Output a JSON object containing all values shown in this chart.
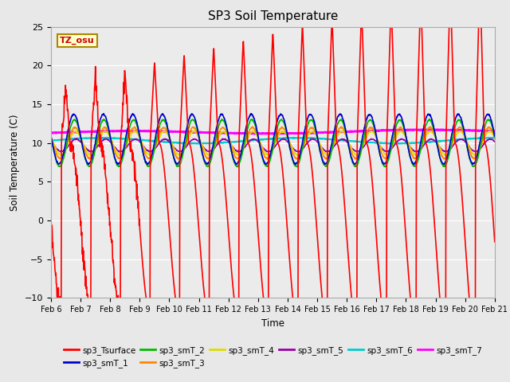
{
  "title": "SP3 Soil Temperature",
  "ylabel": "Soil Temperature (C)",
  "xlabel": "Time",
  "annotation": "TZ_osu",
  "ylim": [
    -10,
    25
  ],
  "xlim": [
    0,
    15
  ],
  "x_tick_labels": [
    "Feb 6",
    "Feb 7",
    "Feb 8",
    "Feb 9",
    "Feb 10",
    "Feb 11",
    "Feb 12",
    "Feb 13",
    "Feb 14",
    "Feb 15",
    "Feb 16",
    "Feb 17",
    "Feb 18",
    "Feb 19",
    "Feb 20",
    "Feb 21"
  ],
  "series": {
    "sp3_Tsurface": {
      "color": "#FF0000",
      "lw": 1.2
    },
    "sp3_smT_1": {
      "color": "#0000CC",
      "lw": 1.2
    },
    "sp3_smT_2": {
      "color": "#00BB00",
      "lw": 1.2
    },
    "sp3_smT_3": {
      "color": "#FF8800",
      "lw": 1.2
    },
    "sp3_smT_4": {
      "color": "#DDDD00",
      "lw": 1.2
    },
    "sp3_smT_5": {
      "color": "#9900AA",
      "lw": 1.2
    },
    "sp3_smT_6": {
      "color": "#00CCCC",
      "lw": 1.5
    },
    "sp3_smT_7": {
      "color": "#FF00FF",
      "lw": 2.0
    }
  },
  "legend_order": [
    "sp3_Tsurface",
    "sp3_smT_1",
    "sp3_smT_2",
    "sp3_smT_3",
    "sp3_smT_4",
    "sp3_smT_5",
    "sp3_smT_6",
    "sp3_smT_7"
  ],
  "bg_color": "#E8E8E8",
  "plot_bg": "#EBEBEB"
}
